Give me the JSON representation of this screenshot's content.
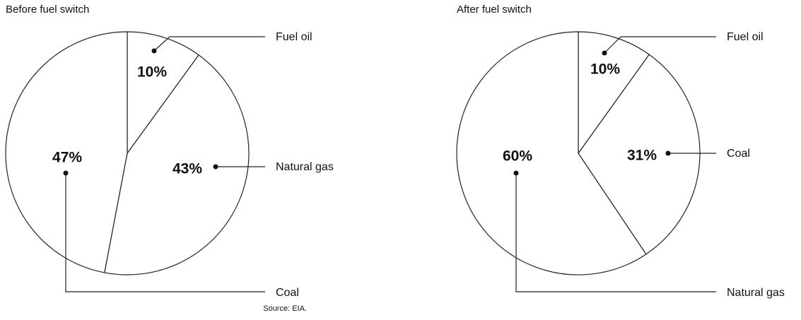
{
  "chart_data": [
    {
      "type": "pie",
      "title": "Before fuel switch",
      "categories": [
        "Fuel oil",
        "Natural gas",
        "Coal"
      ],
      "values": [
        10,
        43,
        47
      ],
      "value_labels": [
        "10%",
        "43%",
        "47%"
      ],
      "color": "#ffffff"
    },
    {
      "type": "pie",
      "title": "After fuel switch",
      "categories": [
        "Fuel oil",
        "Coal",
        "Natural gas"
      ],
      "values": [
        10,
        31,
        60
      ],
      "value_labels": [
        "10%",
        "31%",
        "60%"
      ],
      "color": "#ffffff"
    }
  ],
  "source": "Source: EIA."
}
